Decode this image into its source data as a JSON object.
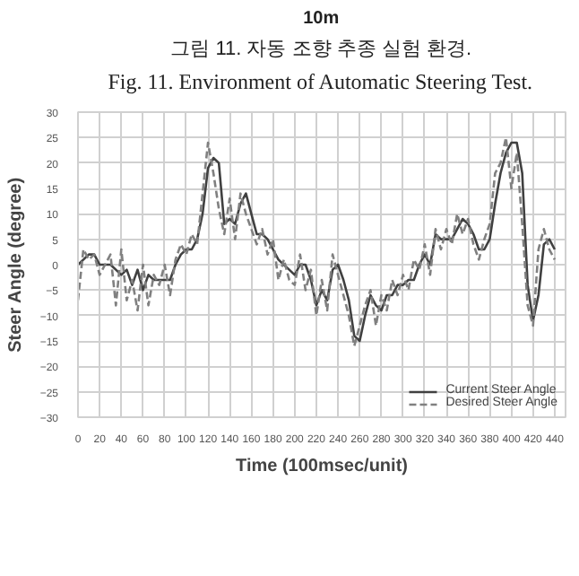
{
  "chart_data": {
    "type": "line",
    "xlabel": "Time (100msec/unit)",
    "ylabel": "Steer Angle (degree)",
    "annotations": [
      "10m",
      "그림 11. 자동 조향 추종 실험 환경.",
      "Fig. 11. Environment of Automatic Steering Test."
    ],
    "x": [
      0,
      5,
      10,
      15,
      20,
      25,
      30,
      35,
      40,
      45,
      50,
      55,
      60,
      65,
      70,
      75,
      80,
      85,
      90,
      95,
      100,
      105,
      110,
      115,
      120,
      125,
      130,
      135,
      140,
      145,
      150,
      155,
      160,
      165,
      170,
      175,
      180,
      185,
      190,
      195,
      200,
      205,
      210,
      215,
      220,
      225,
      230,
      235,
      240,
      245,
      250,
      255,
      260,
      265,
      270,
      275,
      280,
      285,
      290,
      295,
      300,
      305,
      310,
      315,
      320,
      325,
      330,
      335,
      340,
      345,
      350,
      355,
      360,
      365,
      370,
      375,
      380,
      385,
      390,
      395,
      400,
      405,
      410,
      415,
      420,
      425,
      430,
      435,
      440
    ],
    "series": [
      {
        "name": "Current Steer Angle",
        "color": "#404040",
        "line_style": "solid",
        "values": [
          0,
          1,
          2,
          2,
          0,
          0,
          0,
          -1,
          -2,
          -1,
          -4,
          -1,
          -5,
          -2,
          -3,
          -3,
          -3,
          -3,
          0,
          2,
          3,
          3,
          5,
          10,
          19,
          21,
          20,
          8,
          9,
          8,
          12,
          14,
          10,
          6,
          6,
          5,
          3,
          1,
          0,
          -1,
          -2,
          0,
          0,
          -3,
          -8,
          -5,
          -7,
          -1,
          0,
          -3,
          -7,
          -14,
          -15,
          -10,
          -6,
          -8,
          -9,
          -6,
          -6,
          -4,
          -4,
          -3,
          -3,
          0,
          2,
          0,
          6,
          5,
          5,
          5,
          7,
          9,
          8,
          6,
          3,
          3,
          5,
          12,
          18,
          22,
          24,
          24,
          18,
          -4,
          -11,
          -6,
          4,
          5,
          3
        ]
      },
      {
        "name": "Desired Steer Angle",
        "color": "#808080",
        "line_style": "dashed",
        "values": [
          -7,
          3,
          1,
          2,
          -2,
          0,
          2,
          -8,
          3,
          -7,
          -3,
          -9,
          0,
          -8,
          -2,
          -4,
          0,
          -6,
          1,
          4,
          2,
          6,
          4,
          14,
          24,
          18,
          11,
          6,
          13,
          5,
          14,
          10,
          7,
          4,
          7,
          2,
          5,
          -3,
          1,
          -3,
          -4,
          2,
          -5,
          -1,
          -10,
          -3,
          -9,
          2,
          -2,
          -6,
          -10,
          -16,
          -12,
          -8,
          -5,
          -12,
          -6,
          -9,
          -3,
          -6,
          -2,
          -5,
          1,
          -1,
          4,
          -2,
          7,
          3,
          7,
          4,
          10,
          6,
          9,
          4,
          1,
          5,
          8,
          18,
          20,
          25,
          15,
          22,
          8,
          -8,
          -12,
          3,
          7,
          3,
          1
        ]
      }
    ],
    "xlim": [
      0,
      450
    ],
    "xticks": [
      0,
      20,
      40,
      60,
      80,
      100,
      120,
      140,
      160,
      180,
      200,
      220,
      240,
      260,
      280,
      300,
      320,
      340,
      360,
      380,
      400,
      420,
      440
    ],
    "ylim": [
      -30,
      30
    ],
    "yticks": [
      -30,
      -25,
      -20,
      -15,
      -10,
      -5,
      0,
      5,
      10,
      15,
      20,
      25,
      30
    ],
    "grid": true,
    "legend": "bottom right"
  }
}
